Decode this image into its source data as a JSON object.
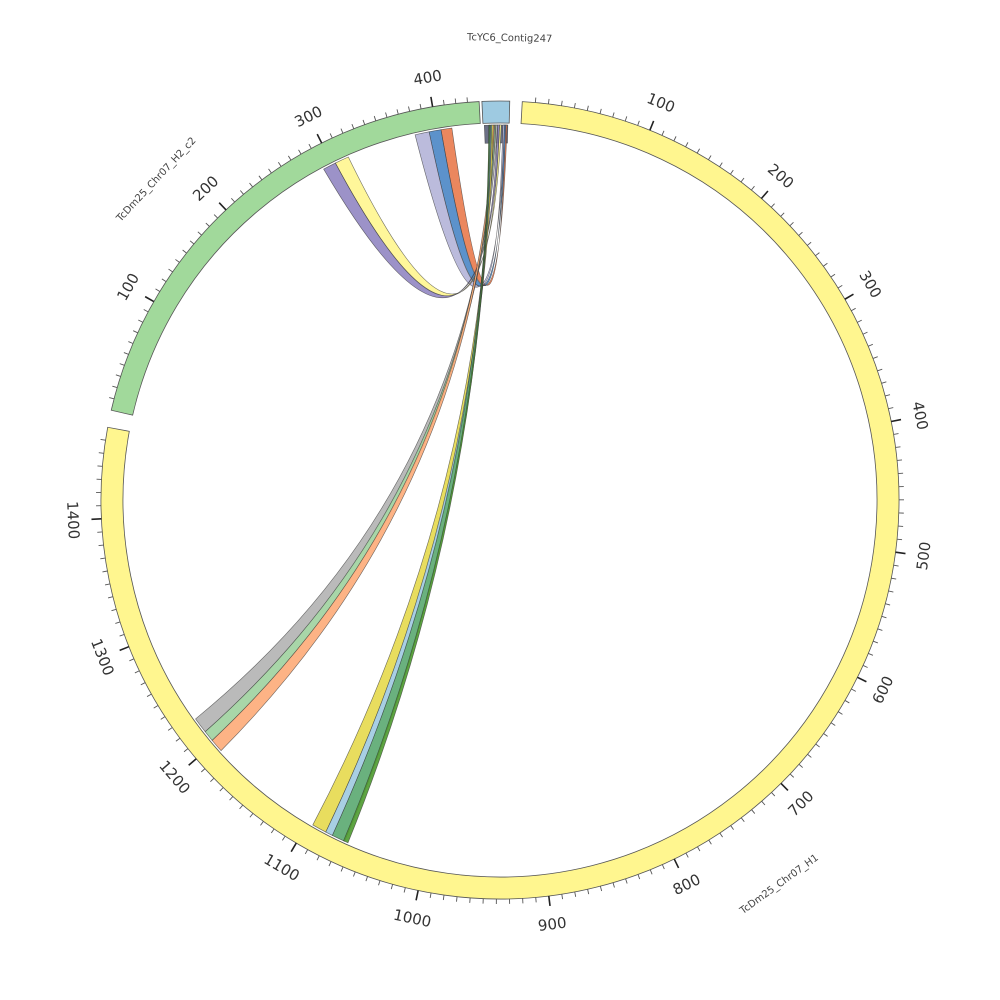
{
  "segments": [
    {
      "id": "h2",
      "name": "TcDm25_Chr07_H2_c2",
      "length": 440,
      "color": "#a1d99b",
      "ticks": [
        100,
        200,
        300,
        400
      ]
    },
    {
      "id": "contig",
      "name": "TcYC6_Contig247",
      "length": 10,
      "color": "#9ecae1",
      "ticks": []
    },
    {
      "id": "h1",
      "name": "TcDm25_Chr07_H1",
      "length": 1470,
      "color": "#fff68f",
      "ticks": [
        100,
        200,
        300,
        400,
        500,
        600,
        700,
        800,
        900,
        1000,
        1100,
        1200,
        1300,
        1400
      ]
    }
  ],
  "links": [
    {
      "from": "contig",
      "from_range": [
        0.5,
        9.5
      ],
      "to": "contig",
      "to_range": [
        0.5,
        9.5
      ],
      "color": "#5b5f78"
    },
    {
      "from": "contig",
      "from_range": [
        8.6,
        9.2
      ],
      "to": "h2",
      "to_range": [
        404,
        414
      ],
      "color": "#e97a4c"
    },
    {
      "from": "contig",
      "from_range": [
        8.1,
        8.7
      ],
      "to": "h2",
      "to_range": [
        393,
        404
      ],
      "color": "#4a86c5"
    },
    {
      "from": "contig",
      "from_range": [
        7.6,
        8.2
      ],
      "to": "h2",
      "to_range": [
        380,
        393
      ],
      "color": "#b4b4d8"
    },
    {
      "from": "contig",
      "from_range": [
        6.3,
        7.0
      ],
      "to": "h2",
      "to_range": [
        303,
        316
      ],
      "color": "#fff68f"
    },
    {
      "from": "contig",
      "from_range": [
        5.6,
        6.3
      ],
      "to": "h2",
      "to_range": [
        291,
        303
      ],
      "color": "#9186c2"
    },
    {
      "from": "contig",
      "from_range": [
        4.9,
        5.6
      ],
      "to": "h1",
      "to_range": [
        1212,
        1225
      ],
      "color": "#b3b3b3"
    },
    {
      "from": "contig",
      "from_range": [
        4.4,
        4.9
      ],
      "to": "h1",
      "to_range": [
        1203,
        1212
      ],
      "color": "#9fd29f"
    },
    {
      "from": "contig",
      "from_range": [
        3.9,
        4.4
      ],
      "to": "h1",
      "to_range": [
        1192,
        1203
      ],
      "color": "#fdab78"
    },
    {
      "from": "contig",
      "from_range": [
        3.3,
        3.9
      ],
      "to": "h1",
      "to_range": [
        1084,
        1096
      ],
      "color": "#e6d94c"
    },
    {
      "from": "contig",
      "from_range": [
        2.9,
        3.3
      ],
      "to": "h1",
      "to_range": [
        1078,
        1084
      ],
      "color": "#9ecae1"
    },
    {
      "from": "contig",
      "from_range": [
        2.4,
        2.9
      ],
      "to": "h1",
      "to_range": [
        1067,
        1078
      ],
      "color": "#5aa870"
    },
    {
      "from": "contig",
      "from_range": [
        2.2,
        2.5
      ],
      "to": "h1",
      "to_range": [
        1064,
        1068
      ],
      "color": "#4d9a2f"
    }
  ]
}
